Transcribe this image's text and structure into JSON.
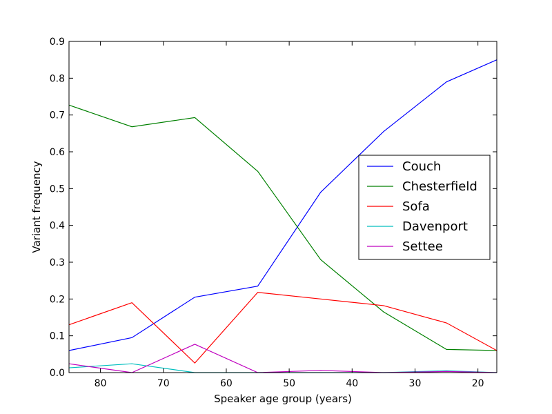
{
  "chart_data": {
    "type": "line",
    "title": "",
    "xlabel": "Speaker age group (years)",
    "ylabel": "Variant frequency",
    "xlim": [
      85,
      17
    ],
    "ylim": [
      0,
      0.9
    ],
    "x_inverted": true,
    "grid": false,
    "legend_position": "center-right",
    "x_ticks": [
      80,
      70,
      60,
      50,
      40,
      30,
      20
    ],
    "x_tick_labels": [
      "80",
      "70",
      "60",
      "50",
      "40",
      "30",
      "20"
    ],
    "y_ticks": [
      0.0,
      0.1,
      0.2,
      0.3,
      0.4,
      0.5,
      0.6,
      0.7,
      0.8,
      0.9
    ],
    "y_tick_labels": [
      "0.0",
      "0.1",
      "0.2",
      "0.3",
      "0.4",
      "0.5",
      "0.6",
      "0.7",
      "0.8",
      "0.9"
    ],
    "x": [
      85,
      75,
      65,
      55,
      45,
      35,
      25,
      17
    ],
    "series": [
      {
        "name": "Couch",
        "color": "#0000ff",
        "values": [
          0.06,
          0.095,
          0.205,
          0.235,
          0.49,
          0.655,
          0.79,
          0.85
        ]
      },
      {
        "name": "Chesterfield",
        "color": "#008000",
        "values": [
          0.727,
          0.668,
          0.693,
          0.547,
          0.307,
          0.165,
          0.063,
          0.06
        ]
      },
      {
        "name": "Sofa",
        "color": "#ff0000",
        "values": [
          0.13,
          0.19,
          0.026,
          0.218,
          0.2,
          0.182,
          0.135,
          0.06
        ]
      },
      {
        "name": "Davenport",
        "color": "#00bfbf",
        "values": [
          0.013,
          0.024,
          0.0,
          0.0,
          0.0,
          0.0,
          0.005,
          0.0
        ]
      },
      {
        "name": "Settee",
        "color": "#bf00bf",
        "values": [
          0.024,
          0.0,
          0.077,
          0.0,
          0.006,
          0.0,
          0.003,
          0.0
        ]
      }
    ]
  }
}
